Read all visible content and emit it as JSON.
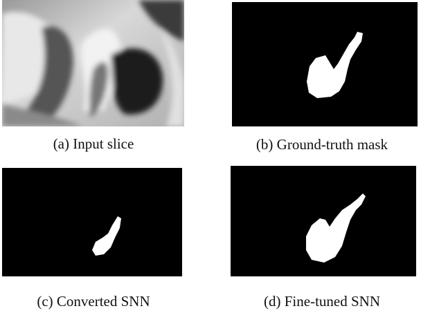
{
  "panels": [
    {
      "caption": "(a) Input slice"
    },
    {
      "caption": "(b) Ground-truth mask"
    },
    {
      "caption": "(c) Converted SNN"
    },
    {
      "caption": "(d) Fine-tuned SNN"
    }
  ]
}
